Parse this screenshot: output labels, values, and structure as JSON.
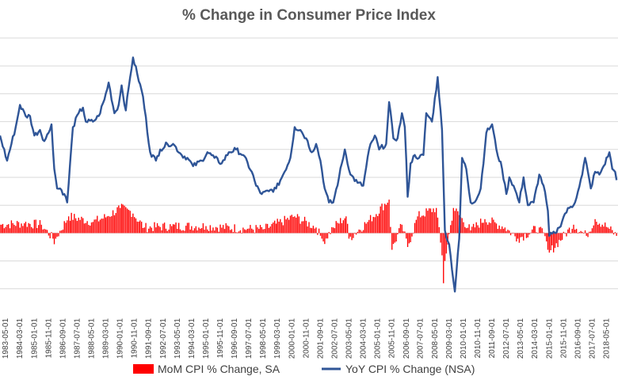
{
  "chart_data": {
    "type": "bar+line",
    "title": "% Change in Consumer Price Index",
    "xlabel": "",
    "ylabel": "",
    "ylim": [
      -3,
      7
    ],
    "grid": true,
    "legend_position": "bottom",
    "x_tick_labels": [
      "1983-05-01",
      "1984-03-01",
      "1985-01-01",
      "1985-11-01",
      "1986-09-01",
      "1987-07-01",
      "1988-05-01",
      "1989-03-01",
      "1990-01-01",
      "1990-11-01",
      "1991-09-01",
      "1992-07-01",
      "1993-05-01",
      "1994-03-01",
      "1995-01-01",
      "1995-11-01",
      "1996-09-01",
      "1997-07-01",
      "1998-05-01",
      "1999-03-01",
      "2000-01-01",
      "2000-11-01",
      "2001-09-01",
      "2002-07-01",
      "2003-05-01",
      "2004-03-01",
      "2005-01-01",
      "2005-11-01",
      "2006-09-01",
      "2007-07-01",
      "2008-05-01",
      "2009-03-01",
      "2010-01-01",
      "2010-11-01",
      "2011-09-01",
      "2012-07-01",
      "2013-05-01",
      "2014-03-01",
      "2015-01-01",
      "2015-11-01",
      "2016-09-01",
      "2017-07-01",
      "2018-05-01"
    ],
    "x_start": "1983-01-01",
    "x_end": "2019-01-01",
    "series": [
      {
        "name": "MoM CPI % Change, SA",
        "kind": "bar",
        "color": "#ff0000",
        "anchors": [
          [
            "1983-01-01",
            0.3
          ],
          [
            "1984-06-01",
            0.35
          ],
          [
            "1985-06-01",
            0.3
          ],
          [
            "1986-02-01",
            -0.2
          ],
          [
            "1986-03-01",
            -0.4
          ],
          [
            "1986-04-01",
            -0.2
          ],
          [
            "1987-01-01",
            0.6
          ],
          [
            "1988-06-01",
            0.4
          ],
          [
            "1989-04-01",
            0.6
          ],
          [
            "1990-01-01",
            0.9
          ],
          [
            "1990-08-01",
            0.8
          ],
          [
            "1990-10-01",
            0.7
          ],
          [
            "1991-06-01",
            0.2
          ],
          [
            "1993-01-01",
            0.25
          ],
          [
            "1995-01-01",
            0.25
          ],
          [
            "1997-06-01",
            0.15
          ],
          [
            "1998-06-01",
            0.15
          ],
          [
            "2000-03-01",
            0.6
          ],
          [
            "2001-06-01",
            0.2
          ],
          [
            "2001-10-01",
            -0.2
          ],
          [
            "2001-11-01",
            -0.3
          ],
          [
            "2002-06-01",
            0.2
          ],
          [
            "2003-03-01",
            0.6
          ],
          [
            "2003-05-01",
            -0.2
          ],
          [
            "2004-06-01",
            0.4
          ],
          [
            "2005-09-01",
            1.2
          ],
          [
            "2005-11-01",
            -0.6
          ],
          [
            "2006-06-01",
            0.3
          ],
          [
            "2006-10-01",
            -0.5
          ],
          [
            "2007-05-01",
            0.6
          ],
          [
            "2008-06-01",
            0.9
          ],
          [
            "2008-10-01",
            -0.8
          ],
          [
            "2008-11-01",
            -1.8
          ],
          [
            "2008-12-01",
            -1.0
          ],
          [
            "2009-06-01",
            0.9
          ],
          [
            "2010-06-01",
            0.1
          ],
          [
            "2011-04-01",
            0.5
          ],
          [
            "2012-06-01",
            0.2
          ],
          [
            "2013-03-01",
            -0.2
          ],
          [
            "2014-06-01",
            0.2
          ],
          [
            "2014-11-01",
            -0.3
          ],
          [
            "2014-12-01",
            -0.6
          ],
          [
            "2015-01-01",
            -0.7
          ],
          [
            "2016-06-01",
            0.3
          ],
          [
            "2017-03-01",
            -0.1
          ],
          [
            "2017-09-01",
            0.5
          ],
          [
            "2018-06-01",
            0.2
          ],
          [
            "2018-12-01",
            -0.1
          ]
        ]
      },
      {
        "name": "YoY CPI % Change (NSA)",
        "kind": "line",
        "color": "#2f5597",
        "anchors": [
          [
            "1983-01-01",
            3.5
          ],
          [
            "1983-06-01",
            2.6
          ],
          [
            "1983-12-01",
            3.8
          ],
          [
            "1984-03-01",
            4.6
          ],
          [
            "1984-07-01",
            4.2
          ],
          [
            "1984-10-01",
            4.2
          ],
          [
            "1985-01-01",
            3.5
          ],
          [
            "1985-05-01",
            3.7
          ],
          [
            "1985-08-01",
            3.3
          ],
          [
            "1985-11-01",
            3.6
          ],
          [
            "1986-01-01",
            3.9
          ],
          [
            "1986-03-01",
            2.3
          ],
          [
            "1986-05-01",
            1.6
          ],
          [
            "1986-07-01",
            1.6
          ],
          [
            "1986-10-01",
            1.4
          ],
          [
            "1986-12-01",
            1.1
          ],
          [
            "1987-04-01",
            3.8
          ],
          [
            "1987-08-01",
            4.3
          ],
          [
            "1987-11-01",
            4.5
          ],
          [
            "1988-01-01",
            4.0
          ],
          [
            "1988-06-01",
            4.0
          ],
          [
            "1988-10-01",
            4.2
          ],
          [
            "1989-02-01",
            4.8
          ],
          [
            "1989-05-01",
            5.4
          ],
          [
            "1989-09-01",
            4.3
          ],
          [
            "1989-12-01",
            4.6
          ],
          [
            "1990-02-01",
            5.3
          ],
          [
            "1990-05-01",
            4.4
          ],
          [
            "1990-08-01",
            5.6
          ],
          [
            "1990-10-01",
            6.3
          ],
          [
            "1991-01-01",
            5.7
          ],
          [
            "1991-05-01",
            4.9
          ],
          [
            "1991-10-01",
            2.9
          ],
          [
            "1992-02-01",
            2.6
          ],
          [
            "1992-05-01",
            3.0
          ],
          [
            "1992-10-01",
            3.2
          ],
          [
            "1993-02-01",
            3.2
          ],
          [
            "1993-08-01",
            2.8
          ],
          [
            "1993-12-01",
            2.7
          ],
          [
            "1994-04-01",
            2.4
          ],
          [
            "1994-10-01",
            2.6
          ],
          [
            "1995-02-01",
            2.9
          ],
          [
            "1995-07-01",
            2.7
          ],
          [
            "1995-12-01",
            2.5
          ],
          [
            "1996-05-01",
            2.9
          ],
          [
            "1996-10-01",
            3.0
          ],
          [
            "1997-03-01",
            2.8
          ],
          [
            "1997-09-01",
            2.2
          ],
          [
            "1997-12-01",
            1.7
          ],
          [
            "1998-04-01",
            1.4
          ],
          [
            "1998-09-01",
            1.5
          ],
          [
            "1999-02-01",
            1.6
          ],
          [
            "1999-07-01",
            2.1
          ],
          [
            "1999-12-01",
            2.7
          ],
          [
            "2000-03-01",
            3.8
          ],
          [
            "2000-07-01",
            3.7
          ],
          [
            "2000-11-01",
            3.4
          ],
          [
            "2001-03-01",
            2.9
          ],
          [
            "2001-06-01",
            3.2
          ],
          [
            "2001-09-01",
            2.6
          ],
          [
            "2001-12-01",
            1.6
          ],
          [
            "2002-03-01",
            1.1
          ],
          [
            "2002-06-01",
            1.1
          ],
          [
            "2002-10-01",
            2.0
          ],
          [
            "2003-02-01",
            3.0
          ],
          [
            "2003-06-01",
            2.1
          ],
          [
            "2003-11-01",
            1.8
          ],
          [
            "2004-03-01",
            1.7
          ],
          [
            "2004-07-01",
            3.0
          ],
          [
            "2004-11-01",
            3.5
          ],
          [
            "2005-02-01",
            3.0
          ],
          [
            "2005-07-01",
            3.2
          ],
          [
            "2005-09-01",
            4.7
          ],
          [
            "2005-12-01",
            3.4
          ],
          [
            "2006-03-01",
            3.4
          ],
          [
            "2006-06-01",
            4.3
          ],
          [
            "2006-08-01",
            3.8
          ],
          [
            "2006-10-01",
            1.3
          ],
          [
            "2006-12-01",
            2.5
          ],
          [
            "2007-03-01",
            2.8
          ],
          [
            "2007-06-01",
            2.7
          ],
          [
            "2007-09-01",
            2.8
          ],
          [
            "2007-11-01",
            4.3
          ],
          [
            "2008-03-01",
            4.0
          ],
          [
            "2008-07-01",
            5.6
          ],
          [
            "2008-10-01",
            3.7
          ],
          [
            "2008-12-01",
            0.1
          ],
          [
            "2009-03-01",
            -0.4
          ],
          [
            "2009-07-01",
            -2.1
          ],
          [
            "2009-10-01",
            -0.2
          ],
          [
            "2009-12-01",
            2.7
          ],
          [
            "2010-03-01",
            2.3
          ],
          [
            "2010-06-01",
            1.1
          ],
          [
            "2010-10-01",
            1.2
          ],
          [
            "2011-01-01",
            1.6
          ],
          [
            "2011-05-01",
            3.6
          ],
          [
            "2011-09-01",
            3.9
          ],
          [
            "2011-12-01",
            3.0
          ],
          [
            "2012-04-01",
            2.3
          ],
          [
            "2012-07-01",
            1.4
          ],
          [
            "2012-09-01",
            2.0
          ],
          [
            "2012-12-01",
            1.7
          ],
          [
            "2013-04-01",
            1.1
          ],
          [
            "2013-07-01",
            2.0
          ],
          [
            "2013-10-01",
            1.0
          ],
          [
            "2014-02-01",
            1.1
          ],
          [
            "2014-06-01",
            2.1
          ],
          [
            "2014-09-01",
            1.7
          ],
          [
            "2014-12-01",
            0.8
          ],
          [
            "2015-01-01",
            -0.1
          ],
          [
            "2015-05-01",
            0.0
          ],
          [
            "2015-08-01",
            0.2
          ],
          [
            "2015-12-01",
            0.7
          ],
          [
            "2016-03-01",
            0.9
          ],
          [
            "2016-06-01",
            1.0
          ],
          [
            "2016-09-01",
            1.5
          ],
          [
            "2016-12-01",
            2.1
          ],
          [
            "2017-02-01",
            2.7
          ],
          [
            "2017-06-01",
            1.6
          ],
          [
            "2017-09-01",
            2.2
          ],
          [
            "2017-12-01",
            2.1
          ],
          [
            "2018-03-01",
            2.4
          ],
          [
            "2018-07-01",
            2.9
          ],
          [
            "2018-09-01",
            2.3
          ],
          [
            "2018-11-01",
            2.2
          ],
          [
            "2018-12-01",
            1.9
          ]
        ]
      }
    ]
  }
}
